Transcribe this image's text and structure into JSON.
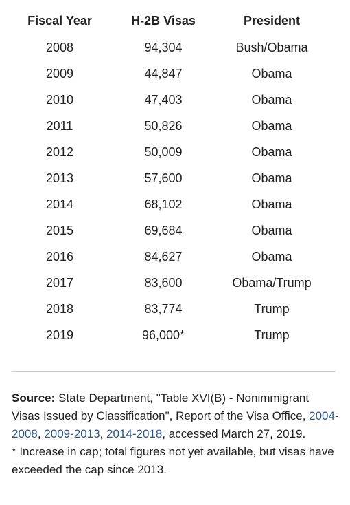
{
  "table": {
    "header": [
      "Fiscal Year",
      "H-2B Visas",
      "President"
    ],
    "rows": [
      [
        "2008",
        "94,304",
        "Bush/Obama"
      ],
      [
        "2009",
        "44,847",
        "Obama"
      ],
      [
        "2010",
        "47,403",
        "Obama"
      ],
      [
        "2011",
        "50,826",
        "Obama"
      ],
      [
        "2012",
        "50,009",
        "Obama"
      ],
      [
        "2013",
        "57,600",
        "Obama"
      ],
      [
        "2014",
        "68,102",
        "Obama"
      ],
      [
        "2015",
        "69,684",
        "Obama"
      ],
      [
        "2016",
        "84,627",
        "Obama"
      ],
      [
        "2017",
        "83,600",
        "Obama/Trump"
      ],
      [
        "2018",
        "83,774",
        "Trump"
      ],
      [
        "2019",
        "96,000*",
        "Trump"
      ]
    ]
  },
  "source": {
    "label": "Source:",
    "parts": [
      {
        "text": " State Department, \"Table XVI(B) - Nonimmigrant Visas Issued by Classification\", Report of the Visa Office, "
      },
      {
        "link": "2004-2008"
      },
      {
        "text": ", "
      },
      {
        "link": "2009-2013"
      },
      {
        "text": ", "
      },
      {
        "link": "2014-2018"
      },
      {
        "text": ", accessed March 27, 2019."
      }
    ],
    "footnote": "* Increase in cap; total figures not yet available, but visas have exceeded the cap since 2013."
  }
}
